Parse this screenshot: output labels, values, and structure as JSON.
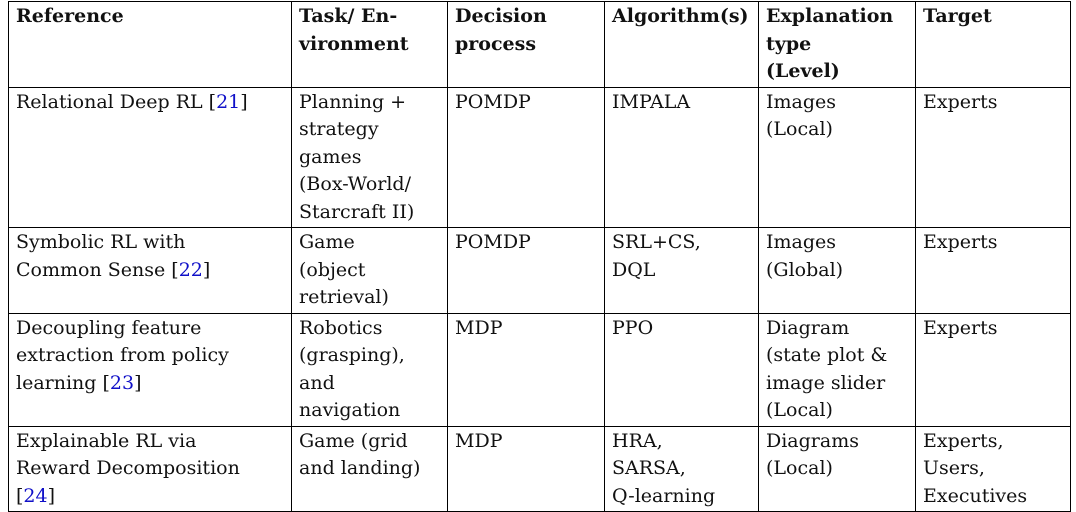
{
  "table": {
    "headers": [
      "Reference",
      "Task/ En-\nvironment",
      "Decision\nprocess",
      "Algorithm(s)",
      "Explanation\ntype\n(Level)",
      "Target"
    ],
    "rows": [
      {
        "reference": "Relational Deep RL ",
        "citation": "21",
        "task": "Planning +\nstrategy\ngames\n(Box-World/\nStarcraft II)",
        "decision": "POMDP",
        "algorithms": "IMPALA",
        "explanation": "Images\n(Local)",
        "target": "Experts"
      },
      {
        "reference": "Symbolic RL with\nCommon Sense ",
        "citation": "22",
        "task": "Game\n(object\nretrieval)",
        "decision": "POMDP",
        "algorithms": "SRL+CS,\nDQL",
        "explanation": "Images\n(Global)",
        "target": "Experts"
      },
      {
        "reference": "Decoupling feature\nextraction from policy\nlearning ",
        "citation": "23",
        "task": "Robotics\n(grasping),\nand\nnavigation",
        "decision": "MDP",
        "algorithms": "PPO",
        "explanation": "Diagram\n(state plot &\nimage slider\n(Local)",
        "target": "Experts"
      },
      {
        "reference": "Explainable RL via\nReward Decomposition\n",
        "citation": "24",
        "task": "Game (grid\nand landing)",
        "decision": "MDP",
        "algorithms": "HRA,\nSARSA,\nQ-learning",
        "explanation": "Diagrams\n(Local)",
        "target": "Experts,\nUsers,\nExecutives"
      }
    ]
  }
}
